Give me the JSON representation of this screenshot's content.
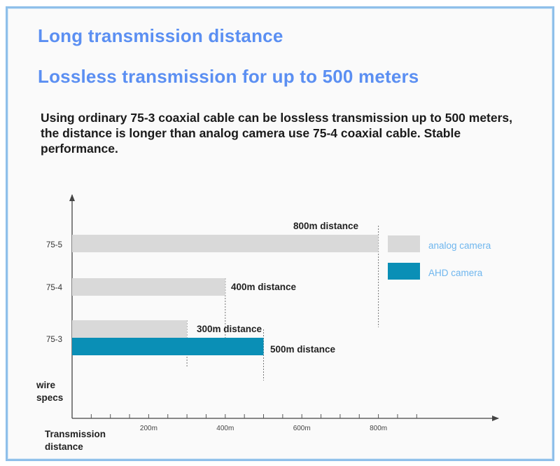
{
  "header": {
    "title": "Long transmission distance",
    "subtitle": "Lossless transmission for up to 500 meters",
    "description": "Using ordinary 75-3 coaxial cable can be lossless transmission up to 500 meters, the distance is longer than analog camera use 75-4 coaxial cable. Stable performance."
  },
  "colors": {
    "title": "#5b8ff2",
    "analog": "#d9d9d9",
    "ahd": "#0a8fb6",
    "legend_text": "#6fb6ee",
    "frame": "#8fc0ea"
  },
  "chart_data": {
    "type": "bar",
    "orientation": "horizontal",
    "categories": [
      "75-5",
      "75-4",
      "75-3"
    ],
    "series": [
      {
        "name": "analog camera",
        "values": [
          800,
          400,
          300
        ],
        "labels": [
          "800m distance",
          "400m distance",
          "300m distance"
        ]
      },
      {
        "name": "AHD camera",
        "values": [
          null,
          null,
          500
        ],
        "labels": [
          null,
          null,
          "500m distance"
        ]
      }
    ],
    "xticks": [
      "200m",
      "400m",
      "600m",
      "800m"
    ],
    "xtick_values": [
      200,
      400,
      600,
      800
    ],
    "xlabel": "Transmission distance",
    "ylabel": "wire specs",
    "xlim": [
      0,
      1000
    ],
    "legend_position": "right",
    "grid": false
  }
}
